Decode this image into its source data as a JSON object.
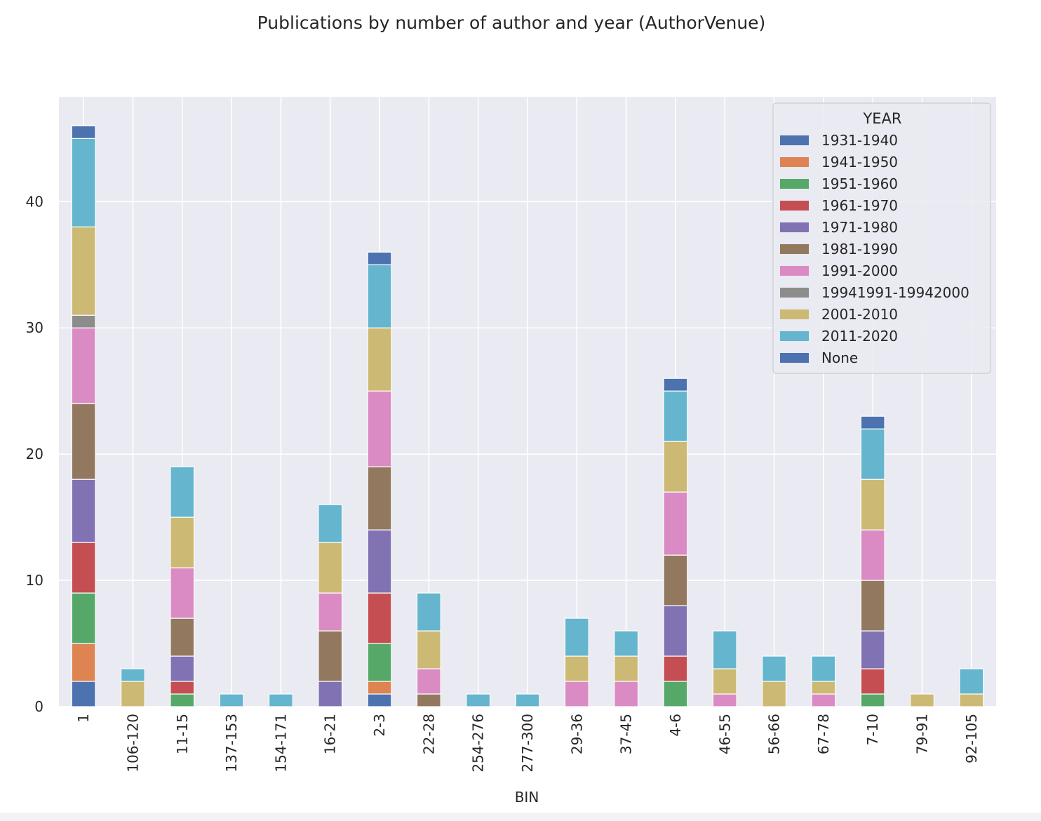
{
  "chart_data": {
    "type": "bar",
    "stacked": true,
    "title": "Publications by number of author and year (AuthorVenue)",
    "xlabel": "BIN",
    "ylabel": "",
    "ylim": [
      0,
      48.3
    ],
    "yticks": [
      0,
      10,
      20,
      30,
      40
    ],
    "grid": true,
    "legend": {
      "title": "YEAR",
      "position": "top-right"
    },
    "categories": [
      "1",
      "106-120",
      "11-15",
      "137-153",
      "154-171",
      "16-21",
      "2-3",
      "22-28",
      "254-276",
      "277-300",
      "29-36",
      "37-45",
      "4-6",
      "46-55",
      "56-66",
      "67-78",
      "7-10",
      "79-91",
      "92-105"
    ],
    "series": [
      {
        "name": "1931-1940",
        "color": "#4c72b0",
        "values": [
          2,
          0,
          0,
          0,
          0,
          0,
          1,
          0,
          0,
          0,
          0,
          0,
          0,
          0,
          0,
          0,
          0,
          0,
          0
        ]
      },
      {
        "name": "1941-1950",
        "color": "#dd8452",
        "values": [
          3,
          0,
          0,
          0,
          0,
          0,
          1,
          0,
          0,
          0,
          0,
          0,
          0,
          0,
          0,
          0,
          0,
          0,
          0
        ]
      },
      {
        "name": "1951-1960",
        "color": "#55a868",
        "values": [
          4,
          0,
          1,
          0,
          0,
          0,
          3,
          0,
          0,
          0,
          0,
          0,
          2,
          0,
          0,
          0,
          1,
          0,
          0
        ]
      },
      {
        "name": "1961-1970",
        "color": "#c44e52",
        "values": [
          4,
          0,
          1,
          0,
          0,
          0,
          4,
          0,
          0,
          0,
          0,
          0,
          2,
          0,
          0,
          0,
          2,
          0,
          0
        ]
      },
      {
        "name": "1971-1980",
        "color": "#8172b3",
        "values": [
          5,
          0,
          2,
          0,
          0,
          2,
          5,
          0,
          0,
          0,
          0,
          0,
          4,
          0,
          0,
          0,
          3,
          0,
          0
        ]
      },
      {
        "name": "1981-1990",
        "color": "#937860",
        "values": [
          6,
          0,
          3,
          0,
          0,
          4,
          5,
          1,
          0,
          0,
          0,
          0,
          4,
          0,
          0,
          0,
          4,
          0,
          0
        ]
      },
      {
        "name": "1991-2000",
        "color": "#da8bc3",
        "values": [
          6,
          0,
          4,
          0,
          0,
          3,
          6,
          2,
          0,
          0,
          2,
          2,
          5,
          1,
          0,
          1,
          4,
          0,
          0
        ]
      },
      {
        "name": "19941991-19942000",
        "color": "#8c8c8c",
        "values": [
          1,
          0,
          0,
          0,
          0,
          0,
          0,
          0,
          0,
          0,
          0,
          0,
          0,
          0,
          0,
          0,
          0,
          0,
          0
        ]
      },
      {
        "name": "2001-2010",
        "color": "#ccb974",
        "values": [
          7,
          2,
          4,
          0,
          0,
          4,
          5,
          3,
          0,
          0,
          2,
          2,
          4,
          2,
          2,
          1,
          4,
          1,
          1
        ]
      },
      {
        "name": "2011-2020",
        "color": "#64b5cd",
        "values": [
          7,
          1,
          4,
          1,
          1,
          3,
          5,
          3,
          1,
          1,
          3,
          2,
          4,
          3,
          2,
          2,
          4,
          0,
          2
        ]
      },
      {
        "name": "None",
        "color": "#4c72b0",
        "values": [
          1,
          0,
          0,
          0,
          0,
          0,
          1,
          0,
          0,
          0,
          0,
          0,
          1,
          0,
          0,
          0,
          1,
          0,
          0
        ]
      }
    ],
    "colors": {
      "plot_background": "#eaeaf2",
      "grid": "#ffffff",
      "text": "#262626"
    }
  }
}
